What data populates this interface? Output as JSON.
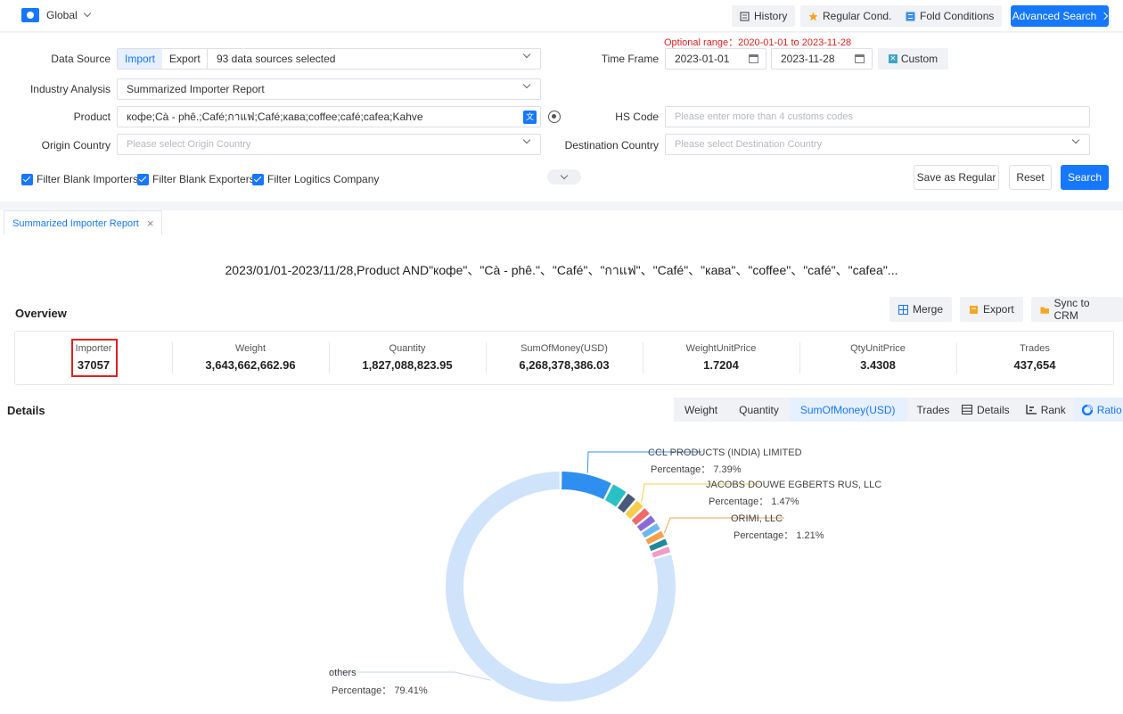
{
  "topbar": {
    "region": "Global",
    "history": "History",
    "regular_cond": "Regular Cond.",
    "fold_conditions": "Fold Conditions",
    "advanced_search": "Advanced Search"
  },
  "form": {
    "optional_range": "Optional range：2020-01-01 to 2023-11-28",
    "data_source_label": "Data Source",
    "import_label": "Import",
    "export_label": "Export",
    "data_sources_value": "93 data sources selected",
    "time_frame_label": "Time Frame",
    "date_from": "2023-01-01",
    "date_to": "2023-11-28",
    "custom_label": "Custom",
    "industry_label": "Industry Analysis",
    "industry_value": "Summarized Importer Report",
    "product_label": "Product",
    "product_value": "кофе;Cà - phê.;Café;กาแฟ;Café;кава;coffee;café;cafea;Kahve",
    "hs_label": "HS Code",
    "hs_placeholder": "Please enter more than 4 customs codes",
    "origin_label": "Origin Country",
    "origin_placeholder": "Please select Origin Country",
    "destination_label": "Destination Country",
    "destination_placeholder": "Please select Destination Country",
    "filter_importers": "Filter Blank Importers",
    "filter_exporters": "Filter Blank Exporters",
    "filter_logistics": "Filter Logitics Company",
    "save_regular": "Save as Regular",
    "reset": "Reset",
    "search": "Search"
  },
  "tab": {
    "label": "Summarized Importer Report",
    "close": "×"
  },
  "query_title": "2023/01/01-2023/11/28,Product AND\"кофе\"、\"Cà - phê.\"、\"Café\"、\"กาแฟ\"、\"Café\"、\"кава\"、\"coffee\"、\"café\"、\"cafea\"...",
  "overview": {
    "title": "Overview",
    "merge": "Merge",
    "export": "Export",
    "sync_crm": "Sync to CRM",
    "stats": [
      {
        "label": "Importer",
        "value": "37057"
      },
      {
        "label": "Weight",
        "value": "3,643,662,662.96"
      },
      {
        "label": "Quantity",
        "value": "1,827,088,823.95"
      },
      {
        "label": "SumOfMoney(USD)",
        "value": "6,268,378,386.03"
      },
      {
        "label": "WeightUnitPrice",
        "value": "1.7204"
      },
      {
        "label": "QtyUnitPrice",
        "value": "3.4308"
      },
      {
        "label": "Trades",
        "value": "437,654"
      }
    ]
  },
  "details": {
    "title": "Details",
    "metrics": [
      "Weight",
      "Quantity",
      "SumOfMoney(USD)",
      "Trades"
    ],
    "active_metric": "SumOfMoney(USD)",
    "views": [
      "Details",
      "Rank",
      "Ratio"
    ],
    "active_view": "Ratio"
  },
  "colors": {
    "accent": "#1677ff",
    "highlight": "#e02020",
    "others": "#cfe3fb"
  },
  "chart_data": {
    "type": "pie",
    "subtype": "donut",
    "slices": [
      {
        "label": "CCL PRODUCTS (INDIA) LIMITED",
        "percentage": 7.39,
        "labeled": true,
        "color": "#2f8ff0"
      },
      {
        "label": "",
        "percentage": 2.4,
        "labeled": false,
        "color": "#29c1c5"
      },
      {
        "label": "",
        "percentage": 1.6,
        "labeled": false,
        "color": "#4a5a7a"
      },
      {
        "label": "JACOBS DOUWE EGBERTS RUS, LLC",
        "percentage": 1.47,
        "labeled": true,
        "color": "#f5cd4a"
      },
      {
        "label": "",
        "percentage": 1.35,
        "labeled": false,
        "color": "#f06a6a"
      },
      {
        "label": "",
        "percentage": 1.3,
        "labeled": false,
        "color": "#8b6ad8"
      },
      {
        "label": "",
        "percentage": 1.25,
        "labeled": false,
        "color": "#6db8f0"
      },
      {
        "label": "ORIMI, LLC",
        "percentage": 1.21,
        "labeled": true,
        "color": "#f5a04a"
      },
      {
        "label": "",
        "percentage": 1.17,
        "labeled": false,
        "color": "#1f8a9c"
      },
      {
        "label": "",
        "percentage": 1.15,
        "labeled": false,
        "color": "#f29ac8"
      },
      {
        "label": "others",
        "percentage": 79.41,
        "labeled": true,
        "color": "#cfe3fb"
      }
    ],
    "percentage_prefix": "Percentage："
  }
}
